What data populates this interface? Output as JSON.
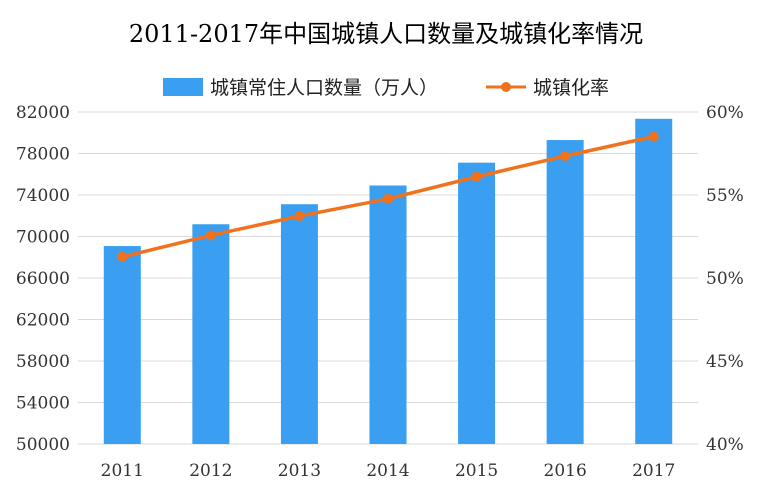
{
  "chart_data": {
    "type": "bar",
    "title": "2011-2017年中国城镇人口数量及城镇化率情况",
    "categories": [
      "2011",
      "2012",
      "2013",
      "2014",
      "2015",
      "2016",
      "2017"
    ],
    "series": [
      {
        "name": "城镇常住人口数量（万人）",
        "type": "bar",
        "axis": "left",
        "color": "#3a9ff0",
        "values": [
          69079,
          71182,
          73111,
          74916,
          77116,
          79298,
          81347
        ]
      },
      {
        "name": "城镇化率",
        "type": "line",
        "axis": "right",
        "color": "#f0721e",
        "values": [
          51.27,
          52.57,
          53.73,
          54.77,
          56.1,
          57.35,
          58.52
        ]
      }
    ],
    "y_left": {
      "min": 50000,
      "max": 82000,
      "ticks": [
        "50000",
        "54000",
        "58000",
        "62000",
        "66000",
        "70000",
        "74000",
        "78000",
        "82000"
      ]
    },
    "y_right": {
      "min": 40,
      "max": 60,
      "ticks": [
        "40%",
        "45%",
        "50%",
        "55%",
        "60%"
      ]
    },
    "legend_position": "top",
    "grid": true
  }
}
